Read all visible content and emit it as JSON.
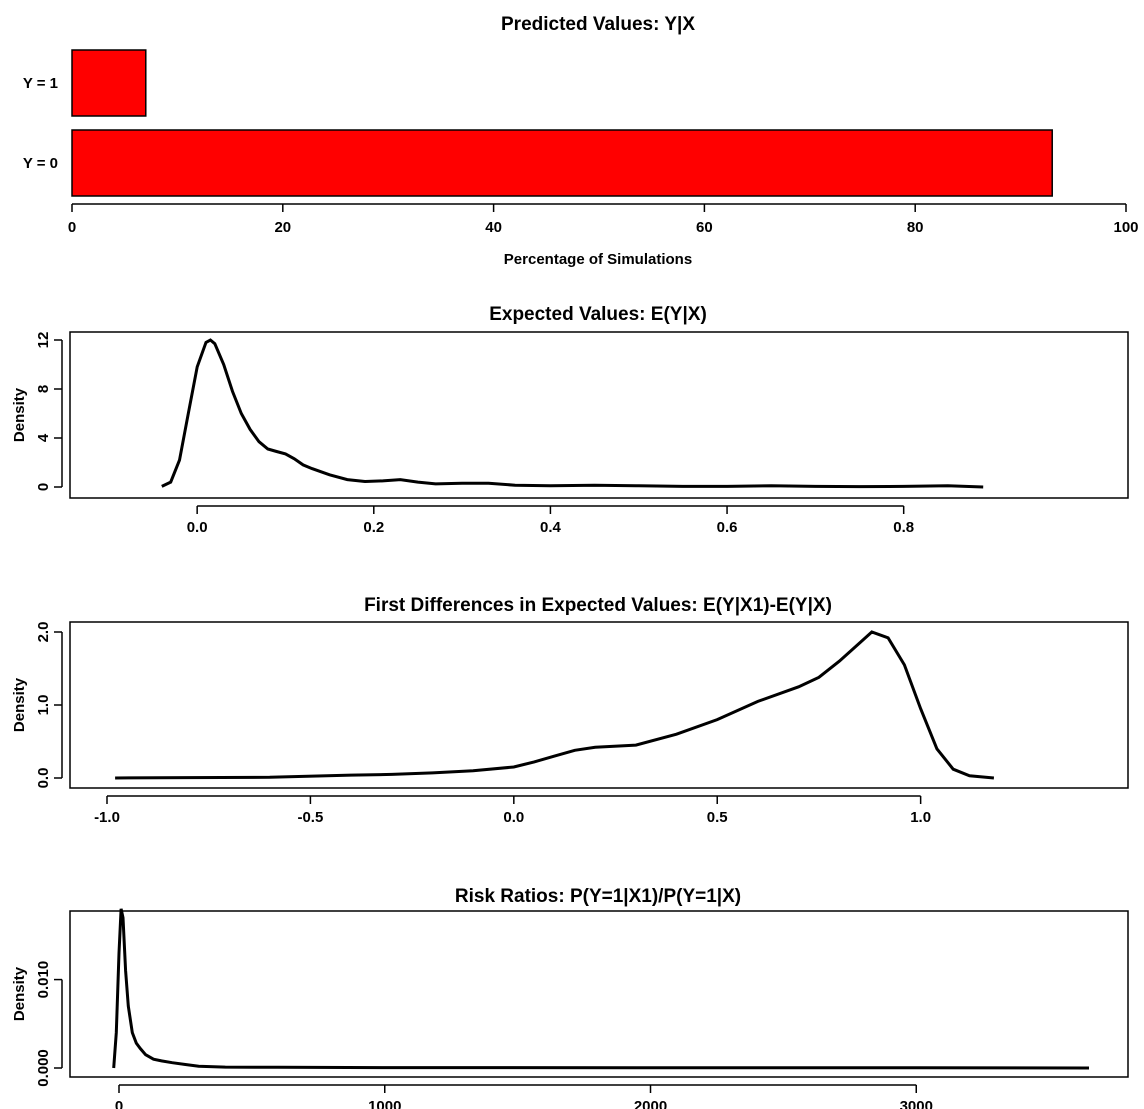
{
  "chart_data": [
    {
      "type": "bar",
      "orientation": "horizontal",
      "title": "Predicted Values: Y|X",
      "xlabel": "Percentage of Simulations",
      "ylabel": "",
      "categories": [
        "Y = 0",
        "Y = 1"
      ],
      "values": [
        93,
        7
      ],
      "xlim": [
        0,
        100
      ],
      "xticks": [
        0,
        20,
        40,
        60,
        80,
        100
      ],
      "bar_color": "#ff0000"
    },
    {
      "type": "line",
      "title": "Expected Values: E(Y|X)",
      "xlabel": "",
      "ylabel": "Density",
      "xlim": [
        -0.05,
        0.9
      ],
      "ylim": [
        0,
        12
      ],
      "xticks": [
        0.0,
        0.2,
        0.4,
        0.6,
        0.8
      ],
      "xtick_labels": [
        "0.0",
        "0.2",
        "0.4",
        "0.6",
        "0.8"
      ],
      "yticks": [
        0,
        4,
        8,
        12
      ],
      "ytick_labels": [
        "0",
        "4",
        "8",
        "12"
      ],
      "series": [
        {
          "x": [
            -0.04,
            -0.03,
            -0.02,
            -0.01,
            0.0,
            0.01,
            0.015,
            0.02,
            0.03,
            0.04,
            0.05,
            0.06,
            0.07,
            0.08,
            0.09,
            0.1,
            0.11,
            0.12,
            0.13,
            0.15,
            0.17,
            0.19,
            0.21,
            0.23,
            0.25,
            0.27,
            0.3,
            0.33,
            0.36,
            0.4,
            0.45,
            0.5,
            0.55,
            0.6,
            0.65,
            0.7,
            0.75,
            0.8,
            0.85,
            0.89
          ],
          "y": [
            0.05,
            0.4,
            2.2,
            6.0,
            9.8,
            11.8,
            12.0,
            11.7,
            10.0,
            7.8,
            6.0,
            4.7,
            3.7,
            3.1,
            2.9,
            2.7,
            2.3,
            1.8,
            1.5,
            1.0,
            0.6,
            0.45,
            0.5,
            0.6,
            0.4,
            0.25,
            0.3,
            0.3,
            0.15,
            0.1,
            0.15,
            0.1,
            0.05,
            0.05,
            0.1,
            0.05,
            0.03,
            0.05,
            0.1,
            0.0
          ]
        }
      ]
    },
    {
      "type": "line",
      "title": "First Differences in Expected Values: E(Y|X1)-E(Y|X)",
      "xlabel": "",
      "ylabel": "Density",
      "xlim": [
        -1.0,
        1.2
      ],
      "ylim": [
        0,
        2.0
      ],
      "xticks": [
        -1.0,
        -0.5,
        0.0,
        0.5,
        1.0
      ],
      "xtick_labels": [
        "-1.0",
        "-0.5",
        "0.0",
        "0.5",
        "1.0"
      ],
      "yticks": [
        0.0,
        1.0,
        2.0
      ],
      "ytick_labels": [
        "0.0",
        "1.0",
        "2.0"
      ],
      "series": [
        {
          "x": [
            -0.98,
            -0.8,
            -0.6,
            -0.4,
            -0.3,
            -0.2,
            -0.1,
            0.0,
            0.05,
            0.1,
            0.15,
            0.2,
            0.3,
            0.4,
            0.5,
            0.6,
            0.7,
            0.75,
            0.8,
            0.85,
            0.88,
            0.92,
            0.96,
            1.0,
            1.04,
            1.08,
            1.12,
            1.18
          ],
          "y": [
            0.0,
            0.005,
            0.01,
            0.04,
            0.05,
            0.07,
            0.1,
            0.15,
            0.22,
            0.3,
            0.38,
            0.42,
            0.45,
            0.6,
            0.8,
            1.05,
            1.25,
            1.38,
            1.6,
            1.85,
            2.0,
            1.92,
            1.55,
            0.95,
            0.4,
            0.12,
            0.03,
            0.0
          ]
        }
      ]
    },
    {
      "type": "line",
      "title": "Risk Ratios: P(Y=1|X1)/P(Y=1|X)",
      "xlabel": "",
      "ylabel": "Density",
      "xlim": [
        0,
        3650
      ],
      "ylim": [
        0,
        0.019
      ],
      "xticks": [
        0,
        1000,
        2000,
        3000
      ],
      "xtick_labels": [
        "0",
        "1000",
        "2000",
        "3000"
      ],
      "yticks": [
        0.0,
        0.01
      ],
      "ytick_labels": [
        "0.000",
        "0.010"
      ],
      "series": [
        {
          "x": [
            -20,
            -10,
            0,
            8,
            15,
            25,
            35,
            50,
            65,
            80,
            100,
            130,
            160,
            200,
            250,
            300,
            400,
            600,
            1000,
            2000,
            3000,
            3650
          ],
          "y": [
            0.0,
            0.004,
            0.013,
            0.018,
            0.017,
            0.011,
            0.007,
            0.004,
            0.0028,
            0.0022,
            0.0015,
            0.001,
            0.0008,
            0.0006,
            0.0004,
            0.0002,
            0.0001,
            8e-05,
            5e-05,
            3e-05,
            2e-05,
            0.0
          ]
        }
      ]
    }
  ]
}
